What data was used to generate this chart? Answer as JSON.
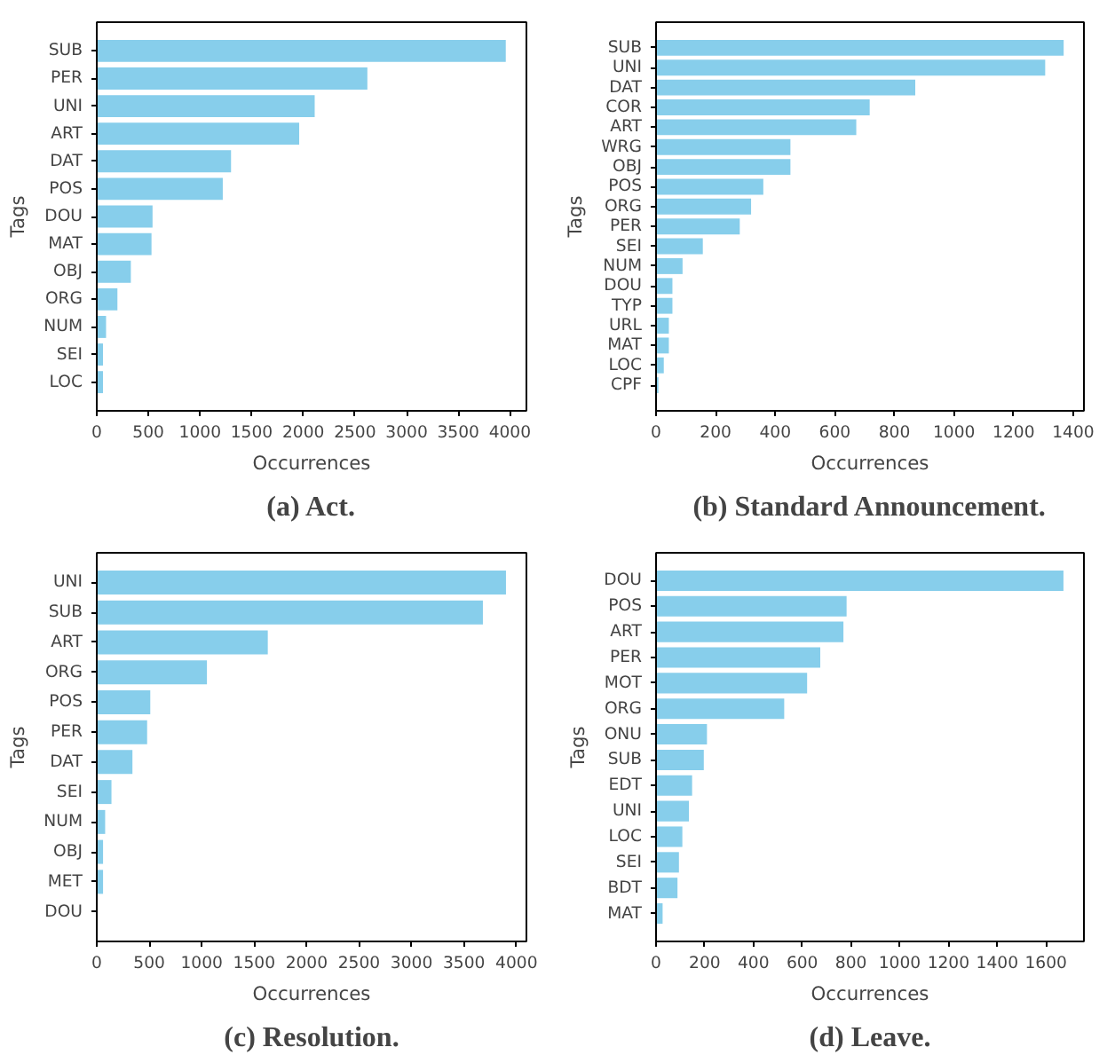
{
  "chart_data": [
    {
      "type": "bar",
      "orientation": "horizontal",
      "title": "(a) Act.",
      "xlabel": "Occurrences",
      "ylabel": "Tags",
      "color": "#87ceeb",
      "grid": false,
      "categories": [
        "SUB",
        "PER",
        "UNI",
        "ART",
        "DAT",
        "POS",
        "DOU",
        "MAT",
        "OBJ",
        "ORG",
        "NUM",
        "SEI",
        "LOC"
      ],
      "values": [
        3960,
        2620,
        2110,
        1960,
        1300,
        1220,
        540,
        530,
        330,
        200,
        90,
        60,
        60
      ],
      "xlim": [
        0,
        4160
      ],
      "xticks": [
        0,
        500,
        1000,
        1500,
        2000,
        2500,
        3000,
        3500,
        4000
      ]
    },
    {
      "type": "bar",
      "orientation": "horizontal",
      "title": "(b) Standard Announcement.",
      "xlabel": "Occurrences",
      "ylabel": "Tags",
      "color": "#87ceeb",
      "grid": false,
      "categories": [
        "SUB",
        "UNI",
        "DAT",
        "COR",
        "ART",
        "WRG",
        "OBJ",
        "POS",
        "ORG",
        "PER",
        "SEI",
        "NUM",
        "DOU",
        "TYP",
        "URL",
        "MAT",
        "LOC",
        "CPF"
      ],
      "values": [
        1368,
        1306,
        870,
        717,
        672,
        451,
        451,
        360,
        319,
        281,
        157,
        89,
        55,
        55,
        43,
        43,
        26,
        8
      ],
      "xlim": [
        0,
        1436
      ],
      "xticks": [
        0,
        200,
        400,
        600,
        800,
        1000,
        1200,
        1400
      ]
    },
    {
      "type": "bar",
      "orientation": "horizontal",
      "title": "(c) Resolution.",
      "xlabel": "Occurrences",
      "ylabel": "Tags",
      "color": "#87ceeb",
      "grid": false,
      "categories": [
        "UNI",
        "SUB",
        "ART",
        "ORG",
        "POS",
        "PER",
        "DAT",
        "SEI",
        "NUM",
        "OBJ",
        "MET",
        "DOU"
      ],
      "values": [
        3900,
        3680,
        1630,
        1050,
        510,
        480,
        340,
        140,
        80,
        60,
        60,
        null
      ],
      "xlim": [
        0,
        4095
      ],
      "xticks": [
        0,
        500,
        1000,
        1500,
        2000,
        2500,
        3000,
        3500,
        4000
      ]
    },
    {
      "type": "bar",
      "orientation": "horizontal",
      "title": "(d) Leave.",
      "xlabel": "Occurrences",
      "ylabel": "Tags",
      "color": "#87ceeb",
      "grid": false,
      "categories": [
        "DOU",
        "POS",
        "ART",
        "PER",
        "MOT",
        "ORG",
        "ONU",
        "SUB",
        "EDT",
        "UNI",
        "LOC",
        "SEI",
        "BDT",
        "MAT"
      ],
      "values": [
        1672,
        782,
        769,
        674,
        620,
        526,
        209,
        196,
        148,
        135,
        108,
        94,
        88,
        27
      ],
      "xlim": [
        0,
        1756
      ],
      "xticks": [
        0,
        200,
        400,
        600,
        800,
        1000,
        1200,
        1400,
        1600
      ]
    }
  ]
}
